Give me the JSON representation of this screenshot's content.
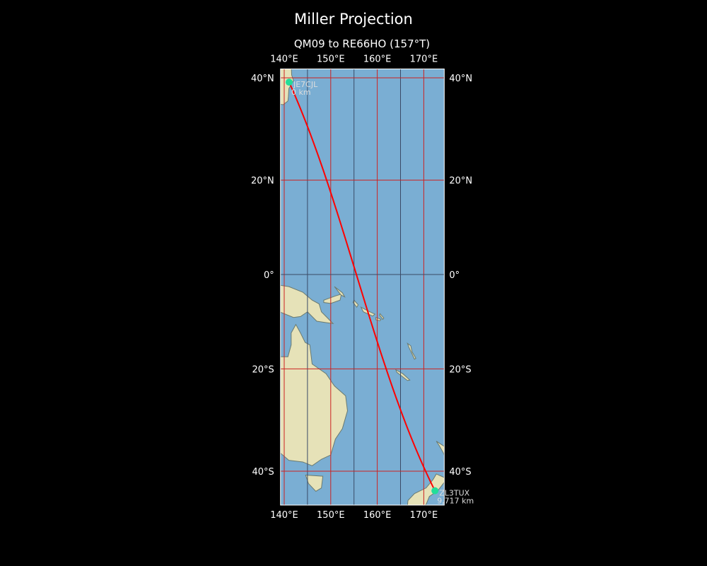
{
  "title": "Miller Projection",
  "subtitle": "QM09 to RE66HO (157°T)",
  "colors": {
    "background": "#000000",
    "ocean": "#7aaed3",
    "land": "#e6e2b8",
    "path": "#ff0000",
    "station": "#22dd99",
    "major_grid": "#cc2222",
    "minor_grid": "#3a4a66"
  },
  "map": {
    "projection": "Miller",
    "lon_range": [
      139.2,
      174.4
    ],
    "lat_range": [
      -46,
      41.6
    ]
  },
  "x_ticks": [
    "140°E",
    "150°E",
    "160°E",
    "170°E"
  ],
  "x_tick_values": [
    140,
    150,
    160,
    170
  ],
  "y_ticks": [
    "40°N",
    "20°N",
    "0°",
    "20°S",
    "40°S"
  ],
  "y_tick_values": [
    40,
    20,
    0,
    -20,
    -40
  ],
  "stations": [
    {
      "call": "JE7CJL",
      "distance": "0 km",
      "lon": 141.06,
      "lat": 39.2
    },
    {
      "call": "ZL3TUX",
      "distance": "9,717 km",
      "lon": 172.4,
      "lat": -43.5
    }
  ]
}
